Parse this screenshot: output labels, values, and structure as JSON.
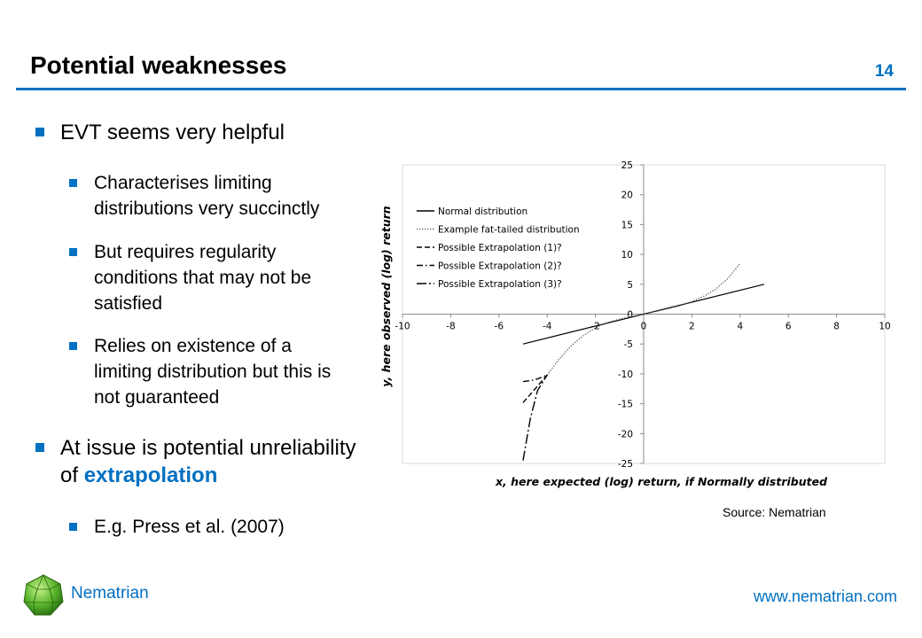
{
  "slide": {
    "title": "Potential weaknesses",
    "page_number": "14",
    "bullets": [
      {
        "text": "EVT seems very helpful"
      },
      {
        "text": "Characterises limiting distributions very succinctly"
      },
      {
        "text": "But requires regularity conditions that may not be satisfied"
      },
      {
        "text": "Relies on existence of a limiting distribution but this is not guaranteed"
      },
      {
        "text_pre": "At issue is potential unreliability of ",
        "text_highlight": "extrapolation"
      },
      {
        "text": "E.g. Press et al. (2007)"
      }
    ],
    "source": "Source: Nematrian",
    "brand": "Nematrian",
    "url": "www.nematrian.com",
    "accent_color": "#0070C0"
  },
  "chart_data": {
    "type": "line",
    "xlabel": "x, here expected (log) return, if Normally distributed",
    "ylabel": "y, here observed (log) return",
    "xlim": [
      -10,
      10
    ],
    "ylim": [
      -25,
      25
    ],
    "x_ticks": [
      "-10",
      "-8",
      "-6",
      "-4",
      "-2",
      "0",
      "2",
      "4",
      "6",
      "8",
      "10"
    ],
    "y_ticks": [
      "25",
      "20",
      "15",
      "10",
      "5",
      "0",
      "-5",
      "-10",
      "-15",
      "-20",
      "-25"
    ],
    "grid": false,
    "legend_position": "top-left",
    "series": [
      {
        "name": "Normal distribution",
        "style": "solid",
        "points": [
          [
            -5,
            -5
          ],
          [
            5,
            5
          ]
        ]
      },
      {
        "name": "Example fat-tailed distribution",
        "style": "dotted",
        "points": [
          [
            -4,
            -10.2
          ],
          [
            -3.5,
            -7.5
          ],
          [
            -3,
            -5.3
          ],
          [
            -2.5,
            -3.6
          ],
          [
            -2,
            -2.3
          ],
          [
            -1.5,
            -1.4
          ],
          [
            -1,
            -0.85
          ],
          [
            -0.5,
            -0.4
          ],
          [
            0,
            0
          ],
          [
            0.5,
            0.45
          ],
          [
            1,
            0.9
          ],
          [
            1.5,
            1.4
          ],
          [
            2,
            2.1
          ],
          [
            2.5,
            3.0
          ],
          [
            3,
            4.2
          ],
          [
            3.5,
            6.0
          ],
          [
            4,
            8.5
          ]
        ]
      },
      {
        "name": "Possible Extrapolation (1)?",
        "style": "dashed",
        "points": [
          [
            -5,
            -14.8
          ],
          [
            -4.5,
            -12.5
          ],
          [
            -4,
            -10.2
          ]
        ]
      },
      {
        "name": "Possible Extrapolation (2)?",
        "style": "dashdot",
        "points": [
          [
            -5,
            -11.3
          ],
          [
            -4.5,
            -11.0
          ],
          [
            -4,
            -10.2
          ]
        ]
      },
      {
        "name": "Possible Extrapolation (3)?",
        "style": "longdashdot",
        "points": [
          [
            -5,
            -24.5
          ],
          [
            -4.7,
            -17.5
          ],
          [
            -4.4,
            -12.8
          ],
          [
            -4,
            -10.2
          ]
        ]
      }
    ]
  }
}
